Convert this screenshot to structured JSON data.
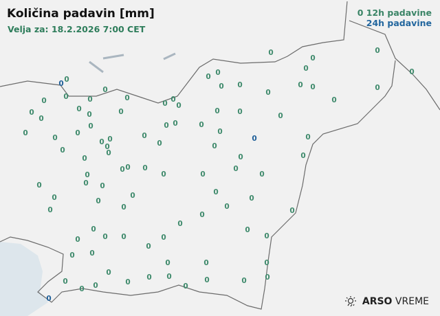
{
  "header": {
    "title": "Količina padavin [mm]",
    "valid": "Velja za: 18.2.2026 7:00 CET"
  },
  "legend": {
    "items": [
      {
        "symbol": "0",
        "label": "12h padavine",
        "color": "#3f8a6c"
      },
      {
        "label": "24h padavine",
        "color": "#1f5f99"
      }
    ]
  },
  "colors": {
    "h12": "#3f8a6c",
    "h24": "#1f5f99",
    "sea": "#dde6ec",
    "land": "#f1f1f1",
    "border": "#6b6b6b"
  },
  "branding": {
    "icon": "weather-sun-rain-icon",
    "brand": "ARSO",
    "product": "VREME"
  },
  "stations_12h_value": "0",
  "stations_24h": [
    {
      "value": "0"
    },
    {
      "value": "0"
    },
    {
      "value": "0"
    }
  ]
}
